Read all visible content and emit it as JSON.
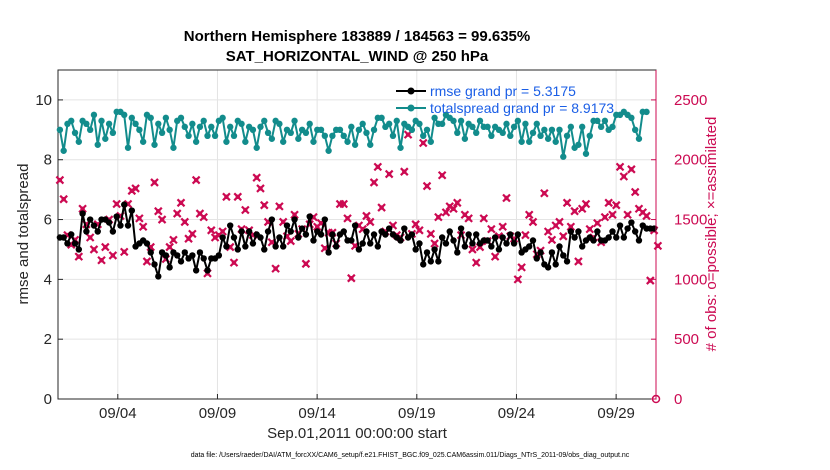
{
  "chart_data": {
    "type": "line",
    "title": [
      "Northern Hemisphere 183889 / 184563 = 99.635%",
      "SAT_HORIZONTAL_WIND @ 250 hPa"
    ],
    "xlabel": "Sep.01,2011 00:00:00 start",
    "ylabel_left": "rmse and totalspread",
    "ylabel_right": "# of obs: o=possible; ×=assimilated",
    "x_ticks": [
      "09/04",
      "09/09",
      "09/14",
      "09/19",
      "09/24",
      "09/29"
    ],
    "x_tick_days": [
      4,
      9,
      14,
      19,
      24,
      29
    ],
    "xlim_days": [
      1,
      31
    ],
    "ylim_left": [
      0,
      11
    ],
    "y_ticks_left": [
      "0",
      "2",
      "4",
      "6",
      "8",
      "10"
    ],
    "ylim_right": [
      0,
      2750
    ],
    "y_ticks_right": [
      "0",
      "500",
      "1000",
      "1500",
      "2000",
      "2500"
    ],
    "grid": true,
    "legend_position": "top-right",
    "colors": {
      "rmse": "#000000",
      "totalspread": "#128c8c",
      "obs": "#cc0a52",
      "legend_text": "#1a5ee6"
    },
    "series": [
      {
        "name": "rmse grand pr = 5.3175",
        "color": "#000000",
        "values": [
          5.4,
          5.4,
          5.2,
          5.5,
          5.2,
          5.0,
          6.2,
          5.6,
          6.0,
          5.8,
          5.6,
          6.0,
          6.0,
          5.9,
          5.6,
          6.1,
          5.8,
          6.5,
          5.8,
          6.3,
          5.1,
          5.2,
          5.3,
          5.2,
          4.9,
          4.5,
          4.1,
          4.9,
          4.8,
          4.4,
          4.9,
          4.8,
          4.6,
          4.9,
          4.7,
          4.8,
          4.3,
          4.9,
          4.7,
          4.3,
          4.7,
          4.7,
          4.8,
          5.4,
          5.1,
          5.8,
          5.4,
          5.0,
          5.6,
          5.1,
          5.6,
          5.2,
          5.5,
          5.4,
          5.0,
          5.6,
          6.0,
          5.1,
          5.4,
          5.1,
          5.8,
          5.6,
          6.0,
          5.4,
          5.7,
          5.5,
          6.1,
          5.3,
          5.6,
          5.5,
          6.0,
          4.9,
          5.5,
          5.1,
          5.5,
          5.6,
          5.3,
          5.3,
          5.8,
          5.0,
          5.2,
          5.6,
          5.2,
          5.5,
          5.1,
          5.6,
          5.5,
          5.7,
          5.5,
          5.4,
          5.3,
          5.7,
          5.4,
          5.5,
          5.0,
          5.2,
          4.5,
          4.9,
          4.6,
          5.0,
          4.6,
          5.4,
          5.2,
          5.6,
          5.3,
          4.9,
          5.7,
          5.1,
          5.5,
          5.2,
          5.5,
          5.2,
          5.3,
          5.3,
          5.1,
          5.4,
          5.0,
          5.4,
          5.2,
          5.5,
          5.2,
          5.5,
          4.9,
          5.0,
          5.1,
          5.3,
          4.7,
          4.9,
          4.5,
          4.4,
          4.9,
          4.5,
          5.1,
          4.8,
          4.6,
          5.6,
          5.4,
          5.6,
          5.1,
          5.3,
          5.4,
          5.3,
          5.6,
          5.3,
          5.3,
          5.4,
          5.6,
          5.4,
          5.8,
          5.4,
          5.7,
          5.9,
          5.6,
          5.3,
          5.8,
          5.7,
          5.7,
          5.7
        ]
      },
      {
        "name": "totalspread grand pr = 8.9173",
        "color": "#128c8c",
        "values": [
          9.0,
          8.3,
          9.2,
          9.3,
          8.9,
          8.6,
          9.3,
          9.2,
          9.0,
          9.5,
          8.5,
          9.3,
          8.7,
          9.2,
          8.9,
          9.6,
          9.6,
          9.5,
          8.4,
          9.4,
          9.2,
          9.0,
          8.6,
          9.5,
          9.4,
          8.5,
          9.2,
          8.9,
          9.4,
          9.0,
          8.4,
          9.3,
          9.4,
          9.1,
          8.8,
          9.2,
          8.6,
          9.1,
          9.3,
          8.8,
          9.1,
          8.8,
          9.3,
          9.4,
          8.6,
          9.1,
          8.8,
          9.3,
          9.2,
          8.6,
          9.1,
          9.0,
          8.4,
          9.1,
          9.3,
          8.9,
          8.7,
          9.3,
          9.2,
          8.6,
          9.0,
          8.9,
          9.3,
          8.7,
          9.0,
          8.9,
          9.2,
          8.6,
          9.0,
          9.0,
          8.8,
          8.3,
          8.8,
          9.0,
          9.0,
          8.8,
          8.6,
          9.1,
          8.5,
          9.0,
          9.2,
          8.9,
          8.5,
          9.0,
          9.4,
          9.4,
          9.1,
          9.2,
          8.8,
          9.3,
          8.4,
          9.2,
          9.1,
          9.0,
          9.3,
          9.2,
          8.8,
          9.0,
          8.6,
          9.4,
          9.2,
          9.2,
          9.5,
          9.4,
          9.3,
          8.9,
          9.3,
          8.7,
          9.2,
          9.1,
          8.9,
          9.3,
          9.1,
          9.1,
          8.8,
          9.1,
          9.0,
          8.9,
          9.2,
          8.8,
          9.1,
          9.3,
          8.6,
          9.2,
          8.6,
          8.9,
          9.2,
          8.8,
          9.0,
          8.7,
          9.0,
          8.6,
          9.0,
          8.1,
          8.8,
          9.1,
          8.4,
          8.5,
          9.1,
          8.2,
          8.8,
          9.3,
          9.3,
          9.1,
          9.3,
          9.0,
          9.1,
          9.5,
          9.5,
          9.6,
          9.5,
          9.4,
          9.0,
          8.7,
          9.6,
          9.6
        ]
      }
    ],
    "obs_possible": [
      1830,
      1670,
      1370,
      1290,
      1330,
      1190,
      1590,
      1460,
      1350,
      1250,
      1460,
      1160,
      1270,
      1500,
      1200,
      1630,
      1530,
      1230,
      1630,
      1740,
      1760,
      1510,
      1440,
      1150,
      1270,
      1810,
      1570,
      1500,
      1170,
      1270,
      1330,
      1550,
      1640,
      1480,
      1340,
      1380,
      1830,
      1550,
      1520,
      1050,
      1410,
      1350,
      1370,
      1400,
      1690,
      1270,
      1140,
      1690,
      1420,
      1580,
      1410,
      1370,
      1850,
      1760,
      1620,
      1480,
      1310,
      1090,
      1610,
      1480,
      1360,
      1320,
      1540,
      1380,
      1420,
      1130,
      1460,
      1520,
      1440,
      1470,
      1260,
      1390,
      1390,
      1300,
      1630,
      1630,
      1510,
      1010,
      1280,
      1450,
      1420,
      1530,
      1480,
      1810,
      1940,
      1600,
      1400,
      1880,
      1450,
      1370,
      1350,
      1900,
      2210,
      1380,
      1460,
      1410,
      2140,
      1780,
      1380,
      1300,
      1520,
      1870,
      1560,
      1610,
      1590,
      1640,
      1370,
      1540,
      1510,
      1250,
      1140,
      1270,
      1510,
      1320,
      1420,
      1190,
      1360,
      1440,
      1680,
      1360,
      1340,
      1000,
      1100,
      1370,
      1540,
      1480,
      1210,
      1240,
      1720,
      1400,
      1330,
      1450,
      1480,
      1360,
      1640,
      1440,
      1570,
      1150,
      1590,
      1630,
      1420,
      1350,
      1470,
      1310,
      1520,
      1640,
      1540,
      1620,
      1940,
      1860,
      1540,
      1920,
      1730,
      1590,
      1560,
      1530,
      990,
      1410,
      1280
    ]
  }
}
